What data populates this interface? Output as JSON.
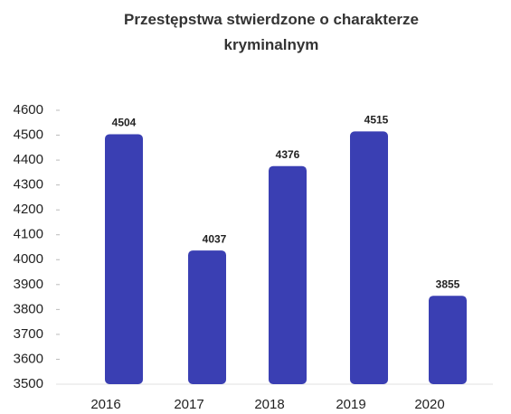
{
  "chart_data": {
    "type": "bar",
    "title": "Przestępstwa stwierdzone o charakterze kryminalnym",
    "categories": [
      "2016",
      "2017",
      "2018",
      "2019",
      "2020"
    ],
    "values": [
      4504,
      4037,
      4376,
      4515,
      3855
    ],
    "color": "#3a3fb3",
    "ylim": [
      3500,
      4600
    ],
    "yticks": [
      3500,
      3600,
      3700,
      3800,
      3900,
      4000,
      4100,
      4200,
      4300,
      4400,
      4500,
      4600
    ],
    "grid": false
  }
}
